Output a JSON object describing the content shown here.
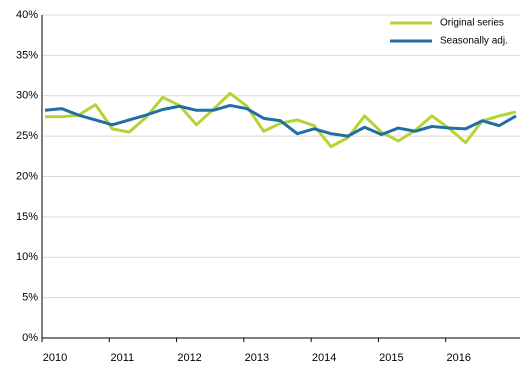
{
  "chart_data": {
    "type": "line",
    "categories": [
      "2010",
      null,
      null,
      null,
      "2011",
      null,
      null,
      null,
      "2012",
      null,
      null,
      null,
      "2013",
      null,
      null,
      null,
      "2014",
      null,
      null,
      null,
      "2015",
      null,
      null,
      null,
      "2016",
      null,
      null,
      null,
      null
    ],
    "series": [
      {
        "name": "Original series",
        "color": "#b5d334",
        "values": [
          27.4,
          27.4,
          27.6,
          28.9,
          25.9,
          25.5,
          27.3,
          29.8,
          28.8,
          26.4,
          28.3,
          30.3,
          28.7,
          25.6,
          26.6,
          27.0,
          26.3,
          23.7,
          24.8,
          27.5,
          25.5,
          24.4,
          25.7,
          27.5,
          26.0,
          24.2,
          26.9,
          27.5,
          28.0
        ]
      },
      {
        "name": "Seasonally adj.",
        "color": "#1f6ea6",
        "values": [
          28.2,
          28.4,
          27.6,
          27.0,
          26.4,
          27.0,
          27.6,
          28.3,
          28.7,
          28.2,
          28.2,
          28.8,
          28.4,
          27.2,
          26.9,
          25.3,
          25.9,
          25.3,
          25.0,
          26.1,
          25.2,
          26.0,
          25.6,
          26.2,
          26.0,
          25.9,
          26.9,
          26.3,
          27.5
        ]
      }
    ],
    "ylim": [
      0,
      40
    ],
    "yticks": [
      {
        "value": 0,
        "label": "0%"
      },
      {
        "value": 5,
        "label": "5%"
      },
      {
        "value": 10,
        "label": "10%"
      },
      {
        "value": 15,
        "label": "15%"
      },
      {
        "value": 20,
        "label": "20%"
      },
      {
        "value": 25,
        "label": "25%"
      },
      {
        "value": 30,
        "label": "30%"
      },
      {
        "value": 35,
        "label": "35%"
      },
      {
        "value": 40,
        "label": "40%"
      }
    ],
    "grid": true,
    "legend": "top-right"
  }
}
